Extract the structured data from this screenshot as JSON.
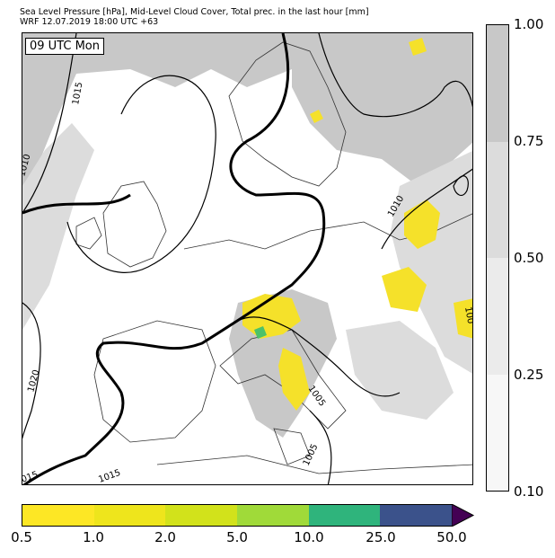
{
  "header": {
    "title_line1": "Sea Level Pressure [hPa], Mid-Level Cloud Cover, Total prec. in the last hour [mm]",
    "title_line2": "WRF 12.07.2019 18:00 UTC +63"
  },
  "map": {
    "time_label": "09 UTC Mon",
    "isobar_labels": [
      "1015",
      "1010",
      "1010",
      "1020",
      "1005",
      "1005",
      "015",
      "1015",
      "100"
    ],
    "colors": {
      "cloud_high": "#c8c8c8",
      "cloud_mid": "#dcdcdc",
      "precip_light": "#f5e12a",
      "precip_green": "#4cc26a",
      "isobar": "#000000"
    }
  },
  "cloud_colorbar": {
    "ticks": [
      "1.00",
      "0.75",
      "0.50",
      "0.25",
      "0.10"
    ],
    "colors": [
      "#c8c8c8",
      "#dcdcdc",
      "#ebebeb",
      "#f7f7f7"
    ]
  },
  "precip_colorbar": {
    "ticks": [
      "0.5",
      "1.0",
      "2.0",
      "5.0",
      "10.0",
      "25.0",
      "50.0"
    ],
    "colors": [
      "#fde725",
      "#eee51c",
      "#d2e21b",
      "#a0da39",
      "#2fb47c",
      "#3b528b",
      "#440154"
    ]
  }
}
